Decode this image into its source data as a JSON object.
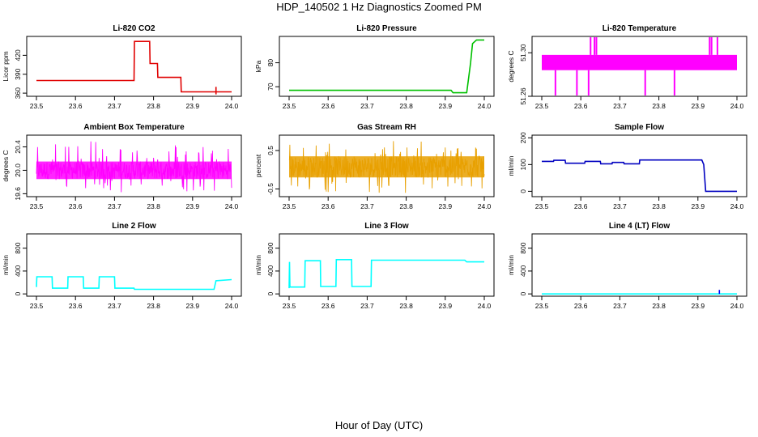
{
  "figure": {
    "title": "HDP_140502  1 Hz Diagnostics Zoomed PM",
    "xlabel": "Hour of Day (UTC)"
  },
  "chart_data": [
    {
      "type": "line",
      "title": "Li-820 CO2",
      "xlabel": "",
      "ylabel": "Licor ppm",
      "color": "#e00000",
      "xlim": [
        23.5,
        24.0
      ],
      "ylim": [
        355,
        450
      ],
      "xticks": [
        23.5,
        23.6,
        23.7,
        23.8,
        23.9,
        24.0
      ],
      "xtick_labels": [
        "23.5",
        "23.6",
        "23.7",
        "23.8",
        "23.9",
        "24.0"
      ],
      "yticks": [
        360,
        390,
        420
      ],
      "ytick_labels": [
        "360",
        "390",
        "420"
      ],
      "series": [
        {
          "x": [
            23.5,
            23.75,
            23.751,
            23.79,
            23.791,
            23.81,
            23.811,
            23.87,
            23.871,
            24.0
          ],
          "y": [
            380,
            380,
            442,
            442,
            407,
            407,
            385,
            385,
            362,
            362
          ]
        }
      ],
      "annotations": [
        {
          "type": "spike",
          "x": 23.96,
          "y0": 358,
          "y1": 370
        }
      ]
    },
    {
      "type": "line",
      "title": "Li-820 Pressure",
      "xlabel": "",
      "ylabel": "kPa",
      "color": "#00c000",
      "xlim": [
        23.5,
        24.0
      ],
      "ylim": [
        66,
        91
      ],
      "xticks": [
        23.5,
        23.6,
        23.7,
        23.8,
        23.9,
        24.0
      ],
      "xtick_labels": [
        "23.5",
        "23.6",
        "23.7",
        "23.8",
        "23.9",
        "24.0"
      ],
      "yticks": [
        70,
        80
      ],
      "ytick_labels": [
        "70",
        "80"
      ],
      "series": [
        {
          "x": [
            23.5,
            23.915,
            23.92,
            23.955,
            23.965,
            23.97,
            23.98,
            24.0
          ],
          "y": [
            68.5,
            68.5,
            67.5,
            67.5,
            80,
            88,
            89.5,
            89.5
          ]
        }
      ]
    },
    {
      "type": "band",
      "title": "Li-820 Temperature",
      "xlabel": "",
      "ylabel": "degrees C",
      "color": "#ff00ff",
      "xlim": [
        23.5,
        24.0
      ],
      "ylim": [
        51.26,
        51.315
      ],
      "xticks": [
        23.5,
        23.6,
        23.7,
        23.8,
        23.9,
        24.0
      ],
      "xtick_labels": [
        "23.5",
        "23.6",
        "23.7",
        "23.8",
        "23.9",
        "24.0"
      ],
      "yticks": [
        51.26,
        51.3
      ],
      "ytick_labels": [
        "51.26",
        "51.30"
      ],
      "band": {
        "low": 51.284,
        "high": 51.298
      },
      "spikes_up": [
        23.625,
        23.635,
        23.64,
        23.93,
        23.935,
        23.95
      ],
      "spikes_down": [
        23.535,
        23.59,
        23.62,
        23.765,
        23.84
      ]
    },
    {
      "type": "band",
      "title": "Ambient Box Temperature",
      "xlabel": "",
      "ylabel": "degrees C",
      "color": "#ff00ff",
      "xlim": [
        23.5,
        24.0
      ],
      "ylim": [
        19.55,
        20.6
      ],
      "xticks": [
        23.5,
        23.6,
        23.7,
        23.8,
        23.9,
        24.0
      ],
      "xtick_labels": [
        "23.5",
        "23.6",
        "23.7",
        "23.8",
        "23.9",
        "24.0"
      ],
      "yticks": [
        19.6,
        20.0,
        20.4
      ],
      "ytick_labels": [
        "19.6",
        "20.0",
        "20.4"
      ],
      "band": {
        "low": 19.85,
        "high": 20.15
      },
      "noise_range": [
        19.62,
        20.5
      ]
    },
    {
      "type": "band",
      "title": "Gas Stream RH",
      "xlabel": "",
      "ylabel": "percent",
      "color": "#e8a000",
      "xlim": [
        23.5,
        24.0
      ],
      "ylim": [
        -0.7,
        0.9
      ],
      "xticks": [
        23.5,
        23.6,
        23.7,
        23.8,
        23.9,
        24.0
      ],
      "xtick_labels": [
        "23.5",
        "23.6",
        "23.7",
        "23.8",
        "23.9",
        "24.0"
      ],
      "yticks": [
        -0.5,
        0.5
      ],
      "ytick_labels": [
        "-0.5",
        "0.5"
      ],
      "band": {
        "low": -0.2,
        "high": 0.35
      },
      "noise_range": [
        -0.6,
        0.75
      ]
    },
    {
      "type": "line",
      "title": "Sample Flow",
      "xlabel": "",
      "ylabel": "ml/min",
      "color": "#0000c0",
      "xlim": [
        23.5,
        24.0
      ],
      "ylim": [
        -20,
        210
      ],
      "xticks": [
        23.5,
        23.6,
        23.7,
        23.8,
        23.9,
        24.0
      ],
      "xtick_labels": [
        "23.5",
        "23.6",
        "23.7",
        "23.8",
        "23.9",
        "24.0"
      ],
      "yticks": [
        0,
        100,
        200
      ],
      "ytick_labels": [
        "0",
        "100",
        "200"
      ],
      "series": [
        {
          "x": [
            23.5,
            23.53,
            23.531,
            23.56,
            23.561,
            23.61,
            23.611,
            23.65,
            23.651,
            23.68,
            23.681,
            23.71,
            23.711,
            23.75,
            23.751,
            23.91,
            23.915,
            23.92,
            24.0
          ],
          "y": [
            112,
            112,
            116,
            116,
            105,
            105,
            112,
            112,
            103,
            103,
            108,
            108,
            103,
            103,
            117,
            117,
            100,
            0,
            0
          ]
        }
      ]
    },
    {
      "type": "line",
      "title": "Line 2 Flow",
      "xlabel": "",
      "ylabel": "ml/min",
      "color": "#00ffff",
      "xlim": [
        23.5,
        24.0
      ],
      "ylim": [
        -40,
        1050
      ],
      "xticks": [
        23.5,
        23.6,
        23.7,
        23.8,
        23.9,
        24.0
      ],
      "xtick_labels": [
        "23.5",
        "23.6",
        "23.7",
        "23.8",
        "23.9",
        "24.0"
      ],
      "yticks": [
        0,
        400,
        800
      ],
      "ytick_labels": [
        "0",
        "400",
        "800"
      ],
      "series": [
        {
          "x": [
            23.5,
            23.501,
            23.54,
            23.541,
            23.58,
            23.581,
            23.62,
            23.621,
            23.66,
            23.661,
            23.7,
            23.701,
            23.75,
            23.751,
            23.955,
            23.96,
            24.0
          ],
          "y": [
            120,
            300,
            300,
            100,
            100,
            300,
            300,
            100,
            100,
            300,
            300,
            100,
            100,
            80,
            80,
            230,
            250
          ]
        }
      ]
    },
    {
      "type": "line",
      "title": "Line 3 Flow",
      "xlabel": "",
      "ylabel": "ml/min",
      "color": "#00ffff",
      "xlim": [
        23.5,
        24.0
      ],
      "ylim": [
        -40,
        1050
      ],
      "xticks": [
        23.5,
        23.6,
        23.7,
        23.8,
        23.9,
        24.0
      ],
      "xtick_labels": [
        "23.5",
        "23.6",
        "23.7",
        "23.8",
        "23.9",
        "24.0"
      ],
      "yticks": [
        0,
        400,
        800
      ],
      "ytick_labels": [
        "0",
        "400",
        "800"
      ],
      "series": [
        {
          "x": [
            23.5,
            23.501,
            23.502,
            23.54,
            23.541,
            23.58,
            23.581,
            23.62,
            23.621,
            23.66,
            23.661,
            23.7,
            23.701,
            23.71,
            23.711,
            23.95,
            23.955,
            24.0
          ],
          "y": [
            100,
            560,
            120,
            120,
            580,
            580,
            130,
            130,
            600,
            600,
            130,
            130,
            130,
            130,
            590,
            590,
            560,
            560
          ]
        }
      ]
    },
    {
      "type": "line",
      "title": "Line 4 (LT) Flow",
      "xlabel": "",
      "ylabel": "ml/min",
      "color": "#00ffff",
      "xlim": [
        23.5,
        24.0
      ],
      "ylim": [
        -40,
        1050
      ],
      "xticks": [
        23.5,
        23.6,
        23.7,
        23.8,
        23.9,
        24.0
      ],
      "xtick_labels": [
        "23.5",
        "23.6",
        "23.7",
        "23.8",
        "23.9",
        "24.0"
      ],
      "yticks": [
        0,
        400,
        800
      ],
      "ytick_labels": [
        "0",
        "400",
        "800"
      ],
      "series": [
        {
          "x": [
            23.5,
            24.0
          ],
          "y": [
            0,
            0
          ]
        }
      ],
      "annotations": [
        {
          "type": "blip",
          "x": 23.955,
          "y0": 0,
          "y1": 70,
          "color": "#0000ff"
        }
      ]
    }
  ]
}
